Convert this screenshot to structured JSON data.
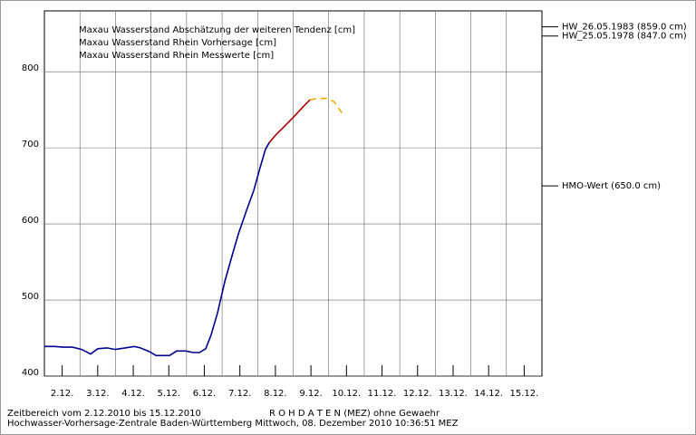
{
  "chart_data": {
    "type": "line",
    "legend": "top-left",
    "xlim": [
      0,
      14
    ],
    "ylim": [
      400,
      880
    ],
    "xticks": [
      {
        "value": 0.5,
        "label": "2.12."
      },
      {
        "value": 1.5,
        "label": "3.12."
      },
      {
        "value": 2.5,
        "label": "4.12."
      },
      {
        "value": 3.5,
        "label": "5.12."
      },
      {
        "value": 4.5,
        "label": "6.12."
      },
      {
        "value": 5.5,
        "label": "7.12."
      },
      {
        "value": 6.5,
        "label": "8.12."
      },
      {
        "value": 7.5,
        "label": "9.12."
      },
      {
        "value": 8.5,
        "label": "10.12."
      },
      {
        "value": 9.5,
        "label": "11.12."
      },
      {
        "value": 10.5,
        "label": "12.12."
      },
      {
        "value": 11.5,
        "label": "13.12."
      },
      {
        "value": 12.5,
        "label": "14.12."
      },
      {
        "value": 13.5,
        "label": "15.12."
      }
    ],
    "xgridlines": [
      1,
      2,
      3,
      4,
      5,
      6,
      7,
      8,
      9,
      10,
      11,
      12,
      13
    ],
    "yticks": [
      400,
      500,
      600,
      700,
      800
    ],
    "grid": true,
    "series": [
      {
        "name": "Maxau Wasserstand Abschätzung der weiteren Tendenz [cm]",
        "color": "#f0a800",
        "dash": true,
        "x": [
          7.47,
          7.68,
          7.93,
          8.14,
          8.37
        ],
        "values": [
          763,
          765,
          765,
          761,
          746
        ]
      },
      {
        "name": "Maxau Wasserstand Rhein Vorhersage [cm]",
        "color": "#b00000",
        "dash": false,
        "x": [
          6.33,
          6.53,
          6.79,
          7.04,
          7.3,
          7.47
        ],
        "values": [
          707,
          718,
          730,
          742,
          755,
          763
        ]
      },
      {
        "name": "Maxau Wasserstand Rhein Messwerte [cm]",
        "color": "#000090",
        "dash": false,
        "x": [
          0,
          0.28,
          0.54,
          0.79,
          1.05,
          1.3,
          1.5,
          1.76,
          2.0,
          2.27,
          2.53,
          2.7,
          2.96,
          3.14,
          3.34,
          3.52,
          3.72,
          3.98,
          4.18,
          4.36,
          4.54,
          4.69,
          4.87,
          5.08,
          5.26,
          5.46,
          5.69,
          5.89,
          6.07,
          6.22,
          6.33
        ],
        "values": [
          439,
          439,
          438,
          438,
          435,
          429,
          436,
          437,
          435,
          437,
          439,
          437,
          432,
          427,
          427,
          427,
          433,
          433,
          431,
          431,
          436,
          454,
          483,
          525,
          555,
          587,
          618,
          644,
          674,
          698,
          707
        ]
      }
    ],
    "reference_lines": [
      {
        "label": "HW_26.05.1983 (859.0 cm)",
        "value": 859
      },
      {
        "label": "HW_25.05.1978 (847.0 cm)",
        "value": 847
      },
      {
        "label": "HMO-Wert (650.0 cm)",
        "value": 650
      }
    ],
    "footer": {
      "range": "Zeitbereich vom 2.12.2010 bis 15.12.2010",
      "status": "R O H D A T E N (MEZ) ohne Gewaehr",
      "source": "Hochwasser-Vorhersage-Zentrale Baden-Württemberg Mittwoch, 08. Dezember 2010 10:36:51 MEZ"
    }
  }
}
